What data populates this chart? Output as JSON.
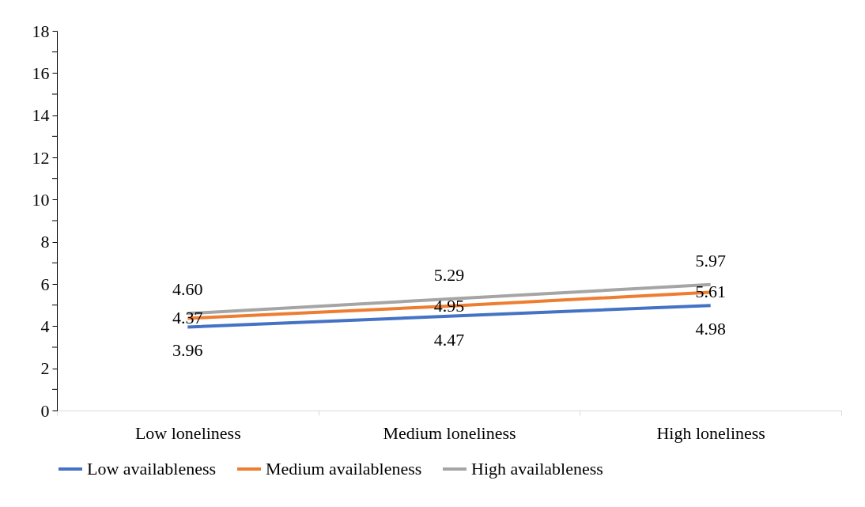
{
  "chart_data": {
    "type": "line",
    "categories": [
      "Low loneliness",
      "Medium loneliness",
      "High loneliness"
    ],
    "series": [
      {
        "name": "Low availableness",
        "color": "#4472c4",
        "values": [
          3.96,
          4.47,
          4.98
        ],
        "value_labels": [
          "3.96",
          "4.47",
          "4.98"
        ]
      },
      {
        "name": "Medium availableness",
        "color": "#ed7d31",
        "values": [
          4.37,
          4.95,
          5.61
        ],
        "value_labels": [
          "4.37",
          "4.95",
          "5.61"
        ]
      },
      {
        "name": "High availableness",
        "color": "#a5a5a5",
        "values": [
          4.6,
          5.29,
          5.97
        ],
        "value_labels": [
          "4.60",
          "5.29",
          "5.97"
        ]
      }
    ],
    "ylim": [
      0,
      18
    ],
    "yticks": [
      0,
      {
        "value": 1,
        "label": null
      },
      2,
      {
        "value": 3,
        "label": null
      },
      4,
      {
        "value": 5,
        "label": null
      },
      6,
      {
        "value": 7,
        "label": null
      },
      8,
      {
        "value": 9,
        "label": null
      },
      10,
      {
        "value": 11,
        "label": null
      },
      12,
      {
        "value": 13,
        "label": null
      },
      14,
      {
        "value": 15,
        "label": null
      },
      16,
      {
        "value": 17,
        "label": null
      },
      18
    ],
    "grid": false,
    "legend": "bottom",
    "marker": "none",
    "line_style": "solid"
  }
}
